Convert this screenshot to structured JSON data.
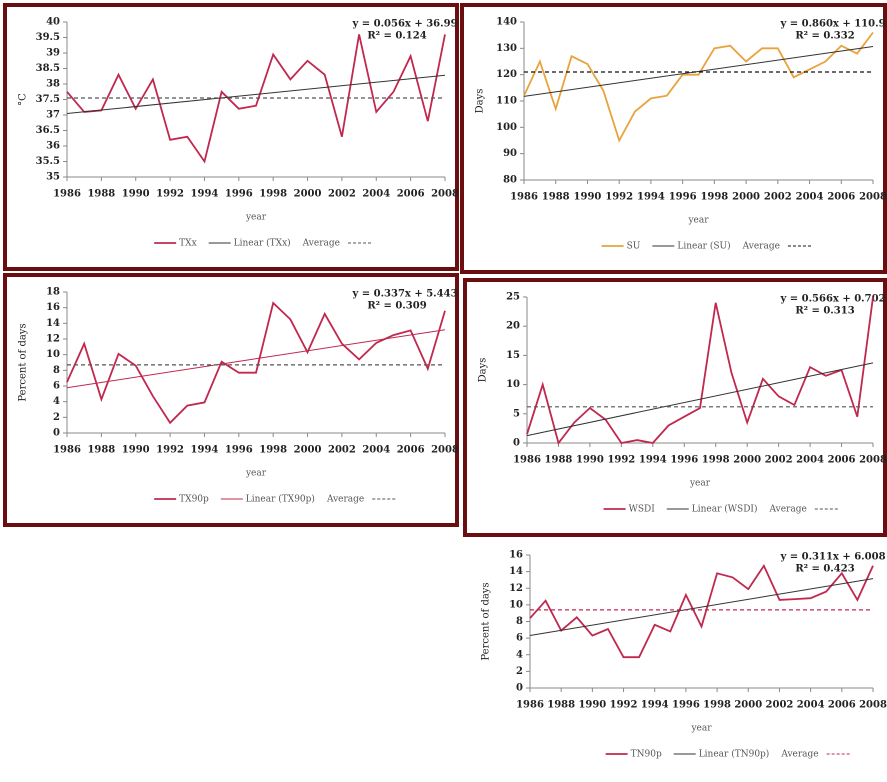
{
  "chart_data": [
    {
      "type": "line",
      "xlabel": "year",
      "ylabel": "°C",
      "x": [
        1986,
        1987,
        1988,
        1989,
        1990,
        1991,
        1992,
        1993,
        1994,
        1995,
        1996,
        1997,
        1998,
        1999,
        2000,
        2001,
        2002,
        2003,
        2004,
        2005,
        2006,
        2007,
        2008
      ],
      "xlim": [
        1986,
        2008
      ],
      "xticks": [
        1986,
        1988,
        1990,
        1992,
        1994,
        1996,
        1998,
        2000,
        2002,
        2004,
        2006,
        2008
      ],
      "ylim": [
        35,
        40
      ],
      "yticks": [
        35,
        35.5,
        36,
        36.5,
        37,
        37.5,
        38,
        38.5,
        39,
        39.5,
        40
      ],
      "annotations": [
        "y = 0.056x + 36.99",
        "R² = 0.124"
      ],
      "series": [
        {
          "name": "TXx",
          "color": "#c0284e",
          "values": [
            37.75,
            37.1,
            37.15,
            38.3,
            37.2,
            38.15,
            36.2,
            36.3,
            35.5,
            37.75,
            37.2,
            37.3,
            38.95,
            38.15,
            38.75,
            38.3,
            36.3,
            39.6,
            37.1,
            37.75,
            38.9,
            36.8,
            39.6
          ]
        },
        {
          "name": "Linear (TXx)",
          "color": "#333333",
          "x": [
            1986,
            2008
          ],
          "values": [
            37.05,
            38.28
          ]
        },
        {
          "name": "Average",
          "color": "#555555",
          "dashed": true,
          "x": [
            1986,
            2008
          ],
          "values": [
            37.55,
            37.55
          ]
        }
      ]
    },
    {
      "type": "line",
      "xlabel": "year",
      "ylabel": "Days",
      "x": [
        1986,
        1987,
        1988,
        1989,
        1990,
        1991,
        1992,
        1993,
        1994,
        1995,
        1996,
        1997,
        1998,
        1999,
        2000,
        2001,
        2002,
        2003,
        2004,
        2005,
        2006,
        2007,
        2008
      ],
      "xlim": [
        1986,
        2008
      ],
      "xticks": [
        1986,
        1988,
        1990,
        1992,
        1994,
        1996,
        1998,
        2000,
        2002,
        2004,
        2006,
        2008
      ],
      "ylim": [
        80,
        140
      ],
      "yticks": [
        80,
        90,
        100,
        110,
        120,
        130,
        140
      ],
      "annotations": [
        "y = 0.860x + 110.9",
        "R² = 0.332"
      ],
      "series": [
        {
          "name": "SU",
          "color": "#e8a33c",
          "values": [
            112,
            125,
            107,
            127,
            124,
            114,
            95,
            106,
            111,
            112,
            120,
            120,
            130,
            131,
            125,
            130,
            130,
            119,
            122,
            125,
            131,
            128,
            136
          ]
        },
        {
          "name": "Linear (SU)",
          "color": "#333333",
          "x": [
            1986,
            2008
          ],
          "values": [
            111.76,
            130.68
          ]
        },
        {
          "name": "Average",
          "color": "#111111",
          "dashed": true,
          "x": [
            1986,
            2008
          ],
          "values": [
            121,
            121
          ]
        }
      ]
    },
    {
      "type": "line",
      "xlabel": "year",
      "ylabel": "Percent of days",
      "x": [
        1986,
        1987,
        1988,
        1989,
        1990,
        1991,
        1992,
        1993,
        1994,
        1995,
        1996,
        1997,
        1998,
        1999,
        2000,
        2001,
        2002,
        2003,
        2004,
        2005,
        2006,
        2007,
        2008
      ],
      "xlim": [
        1986,
        2008
      ],
      "xticks": [
        1986,
        1988,
        1990,
        1992,
        1994,
        1996,
        1998,
        2000,
        2002,
        2004,
        2006,
        2008
      ],
      "ylim": [
        0,
        18
      ],
      "yticks": [
        0,
        2,
        4,
        6,
        8,
        10,
        12,
        14,
        16,
        18
      ],
      "annotations": [
        "y = 0.337x + 5.443",
        "R² = 0.309"
      ],
      "series": [
        {
          "name": "TX90p",
          "color": "#c0284e",
          "values": [
            6.5,
            11.4,
            4.3,
            10.1,
            8.6,
            4.7,
            1.3,
            3.5,
            3.9,
            9.1,
            7.7,
            7.7,
            16.6,
            14.5,
            10.3,
            15.2,
            11.4,
            9.4,
            11.5,
            12.5,
            13.1,
            8.2,
            15.6
          ]
        },
        {
          "name": "Linear (TX90p)",
          "color": "#c0284e",
          "x": [
            1986,
            2008
          ],
          "values": [
            5.78,
            13.19
          ]
        },
        {
          "name": "Average",
          "color": "#555555",
          "dashed": true,
          "x": [
            1986,
            2008
          ],
          "values": [
            8.7,
            8.7
          ]
        }
      ]
    },
    {
      "type": "line",
      "xlabel": "year",
      "ylabel": "Days",
      "x": [
        1986,
        1987,
        1988,
        1989,
        1990,
        1991,
        1992,
        1993,
        1994,
        1995,
        1996,
        1997,
        1998,
        1999,
        2000,
        2001,
        2002,
        2003,
        2004,
        2005,
        2006,
        2007,
        2008
      ],
      "xlim": [
        1986,
        2008
      ],
      "xticks": [
        1986,
        1988,
        1990,
        1992,
        1994,
        1996,
        1998,
        2000,
        2002,
        2004,
        2006,
        2008
      ],
      "ylim": [
        0,
        25
      ],
      "yticks": [
        0,
        5,
        10,
        15,
        20,
        25
      ],
      "annotations": [
        "y = 0.566x + 0.702",
        "R² = 0.313"
      ],
      "series": [
        {
          "name": "WSDI",
          "color": "#c0284e",
          "values": [
            1.5,
            10,
            0,
            3.5,
            6,
            4,
            0,
            0.5,
            0,
            3,
            4.5,
            6,
            24,
            12,
            3.5,
            11,
            8,
            6.5,
            13,
            11.5,
            12.5,
            4.5,
            25
          ]
        },
        {
          "name": "Linear (WSDI)",
          "color": "#333333",
          "x": [
            1986,
            2008
          ],
          "values": [
            1.27,
            13.72
          ]
        },
        {
          "name": "Average",
          "color": "#555555",
          "dashed": true,
          "x": [
            1986,
            2008
          ],
          "values": [
            6.2,
            6.2
          ]
        }
      ]
    },
    {
      "type": "line",
      "xlabel": "year",
      "ylabel": "Percent of days",
      "x": [
        1986,
        1987,
        1988,
        1989,
        1990,
        1991,
        1992,
        1993,
        1994,
        1995,
        1996,
        1997,
        1998,
        1999,
        2000,
        2001,
        2002,
        2003,
        2004,
        2005,
        2006,
        2007,
        2008
      ],
      "xlim": [
        1986,
        2008
      ],
      "xticks": [
        1986,
        1988,
        1990,
        1992,
        1994,
        1996,
        1998,
        2000,
        2002,
        2004,
        2006,
        2008
      ],
      "ylim": [
        0,
        16
      ],
      "yticks": [
        0,
        2,
        4,
        6,
        8,
        10,
        12,
        14,
        16
      ],
      "annotations": [
        "y = 0.311x + 6.008",
        "R² = 0.423"
      ],
      "series": [
        {
          "name": "TN90p",
          "color": "#c0284e",
          "values": [
            8.4,
            10.5,
            6.9,
            8.5,
            6.3,
            7.1,
            3.7,
            3.7,
            7.6,
            6.8,
            11.2,
            7.4,
            13.8,
            13.3,
            11.9,
            14.7,
            10.6,
            10.7,
            10.8,
            11.6,
            13.8,
            10.6,
            14.7
          ]
        },
        {
          "name": "Linear (TN90p)",
          "color": "#333333",
          "x": [
            1986,
            2008
          ],
          "values": [
            6.32,
            13.16
          ]
        },
        {
          "name": "Average",
          "color": "#c0284e",
          "dashed": true,
          "x": [
            1986,
            2008
          ],
          "values": [
            9.4,
            9.4
          ]
        }
      ]
    }
  ]
}
